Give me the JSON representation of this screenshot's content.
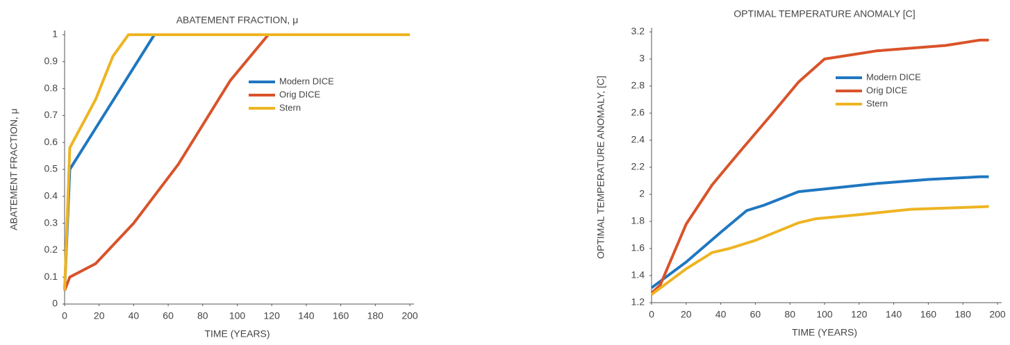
{
  "chart_data": [
    {
      "type": "line",
      "title": "ABATEMENT FRACTION, μ",
      "x_label": "TIME (YEARS)",
      "y_label": "ABATEMENT FRACTION, μ",
      "xlim": [
        0,
        200
      ],
      "ylim": [
        0,
        1
      ],
      "xticks": [
        0,
        20,
        40,
        60,
        80,
        100,
        120,
        140,
        160,
        180,
        200
      ],
      "yticks": [
        0,
        0.1,
        0.2,
        0.3,
        0.4,
        0.5,
        0.6,
        0.7,
        0.8,
        0.9,
        1
      ],
      "series": [
        {
          "name": "Modern DICE",
          "color": "#1f77c0",
          "x": [
            0,
            3,
            52,
            200
          ],
          "values": [
            0.05,
            0.5,
            1,
            1
          ]
        },
        {
          "name": "Orig DICE",
          "color": "#d9532a",
          "x": [
            0,
            3,
            18,
            40,
            66,
            96,
            118,
            200
          ],
          "values": [
            0.05,
            0.1,
            0.15,
            0.3,
            0.52,
            0.83,
            1,
            1
          ]
        },
        {
          "name": "Stern",
          "color": "#eeb422",
          "x": [
            0,
            3,
            18,
            28,
            37,
            200
          ],
          "values": [
            0.05,
            0.58,
            0.76,
            0.92,
            1,
            1
          ]
        }
      ]
    },
    {
      "type": "line",
      "title": "OPTIMAL TEMPERATURE ANOMALY [C]",
      "x_label": "TIME (YEARS)",
      "y_label": "OPTIMAL TEMPERATURE ANOMALY, [C]",
      "xlim": [
        0,
        200
      ],
      "ylim": [
        1.2,
        3.2
      ],
      "xticks": [
        0,
        20,
        40,
        60,
        80,
        100,
        120,
        140,
        160,
        180,
        200
      ],
      "yticks": [
        1.2,
        1.4,
        1.6,
        1.8,
        2,
        2.2,
        2.4,
        2.6,
        2.8,
        3,
        3.2
      ],
      "series": [
        {
          "name": "Modern DICE",
          "color": "#1f77c0",
          "x": [
            0,
            20,
            40,
            55,
            65,
            85,
            100,
            130,
            160,
            190,
            195
          ],
          "values": [
            1.31,
            1.5,
            1.72,
            1.88,
            1.92,
            2.02,
            2.04,
            2.08,
            2.11,
            2.13,
            2.13
          ]
        },
        {
          "name": "Orig DICE",
          "color": "#d9532a",
          "x": [
            0,
            5,
            20,
            35,
            50,
            70,
            85,
            100,
            110,
            130,
            150,
            170,
            190,
            195
          ],
          "values": [
            1.27,
            1.33,
            1.78,
            2.07,
            2.3,
            2.6,
            2.83,
            3.0,
            3.02,
            3.06,
            3.08,
            3.1,
            3.14,
            3.14
          ]
        },
        {
          "name": "Stern",
          "color": "#eeb422",
          "x": [
            0,
            20,
            35,
            45,
            60,
            85,
            95,
            120,
            150,
            195
          ],
          "values": [
            1.26,
            1.45,
            1.57,
            1.6,
            1.66,
            1.79,
            1.82,
            1.85,
            1.89,
            1.91
          ]
        }
      ]
    }
  ]
}
